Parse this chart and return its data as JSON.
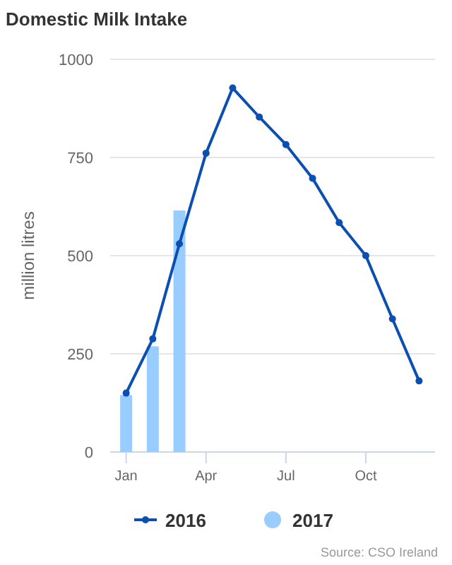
{
  "chart_data": {
    "type": "bar",
    "title": "Domestic Milk Intake",
    "ylabel": "million litres",
    "categories": [
      "Jan",
      null,
      null,
      "Apr",
      null,
      null,
      "Jul",
      null,
      null,
      "Oct",
      null,
      null
    ],
    "series": [
      {
        "name": "2016",
        "type": "line",
        "color": "#0b4fb3",
        "marker": "circle",
        "values": [
          150,
          288,
          530,
          761,
          927,
          853,
          783,
          697,
          584,
          500,
          339,
          181
        ]
      },
      {
        "name": "2017",
        "color": "#99ccff",
        "values": [
          145,
          269,
          615,
          null,
          null,
          null,
          null,
          null,
          null,
          null,
          null,
          null
        ]
      }
    ],
    "ylim": [
      0,
      1000
    ],
    "yticks": [
      0,
      250,
      500,
      750,
      1000
    ],
    "grid": "y",
    "legend": "bottom",
    "annotations": [
      "Source: CSO Ireland"
    ]
  }
}
